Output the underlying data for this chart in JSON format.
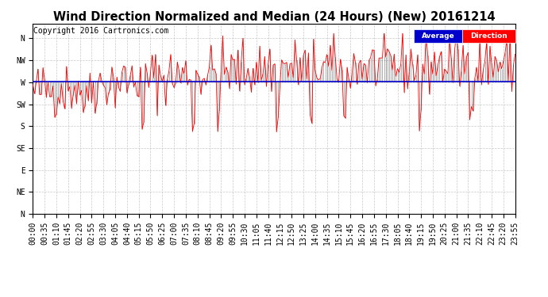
{
  "title": "Wind Direction Normalized and Median (24 Hours) (New) 20161214",
  "copyright": "Copyright 2016 Cartronics.com",
  "legend_labels": [
    "Average",
    "Direction"
  ],
  "legend_colors": [
    "#0000cc",
    "#ff0000"
  ],
  "ylabel_ticks": [
    "N",
    "NW",
    "W",
    "SW",
    "S",
    "SE",
    "E",
    "NE",
    "N"
  ],
  "ylabel_values": [
    360,
    315,
    270,
    225,
    180,
    135,
    90,
    45,
    0
  ],
  "ylim": [
    0,
    390
  ],
  "avg_direction": 272,
  "background_color": "#ffffff",
  "grid_color": "#bbbbbb",
  "red_color": "#ff0000",
  "dark_color": "#111111",
  "blue_color": "#0000cc",
  "title_fontsize": 10.5,
  "copyright_fontsize": 7,
  "tick_fontsize": 7,
  "num_points": 288,
  "seed": 42,
  "xtick_interval_min": 35
}
